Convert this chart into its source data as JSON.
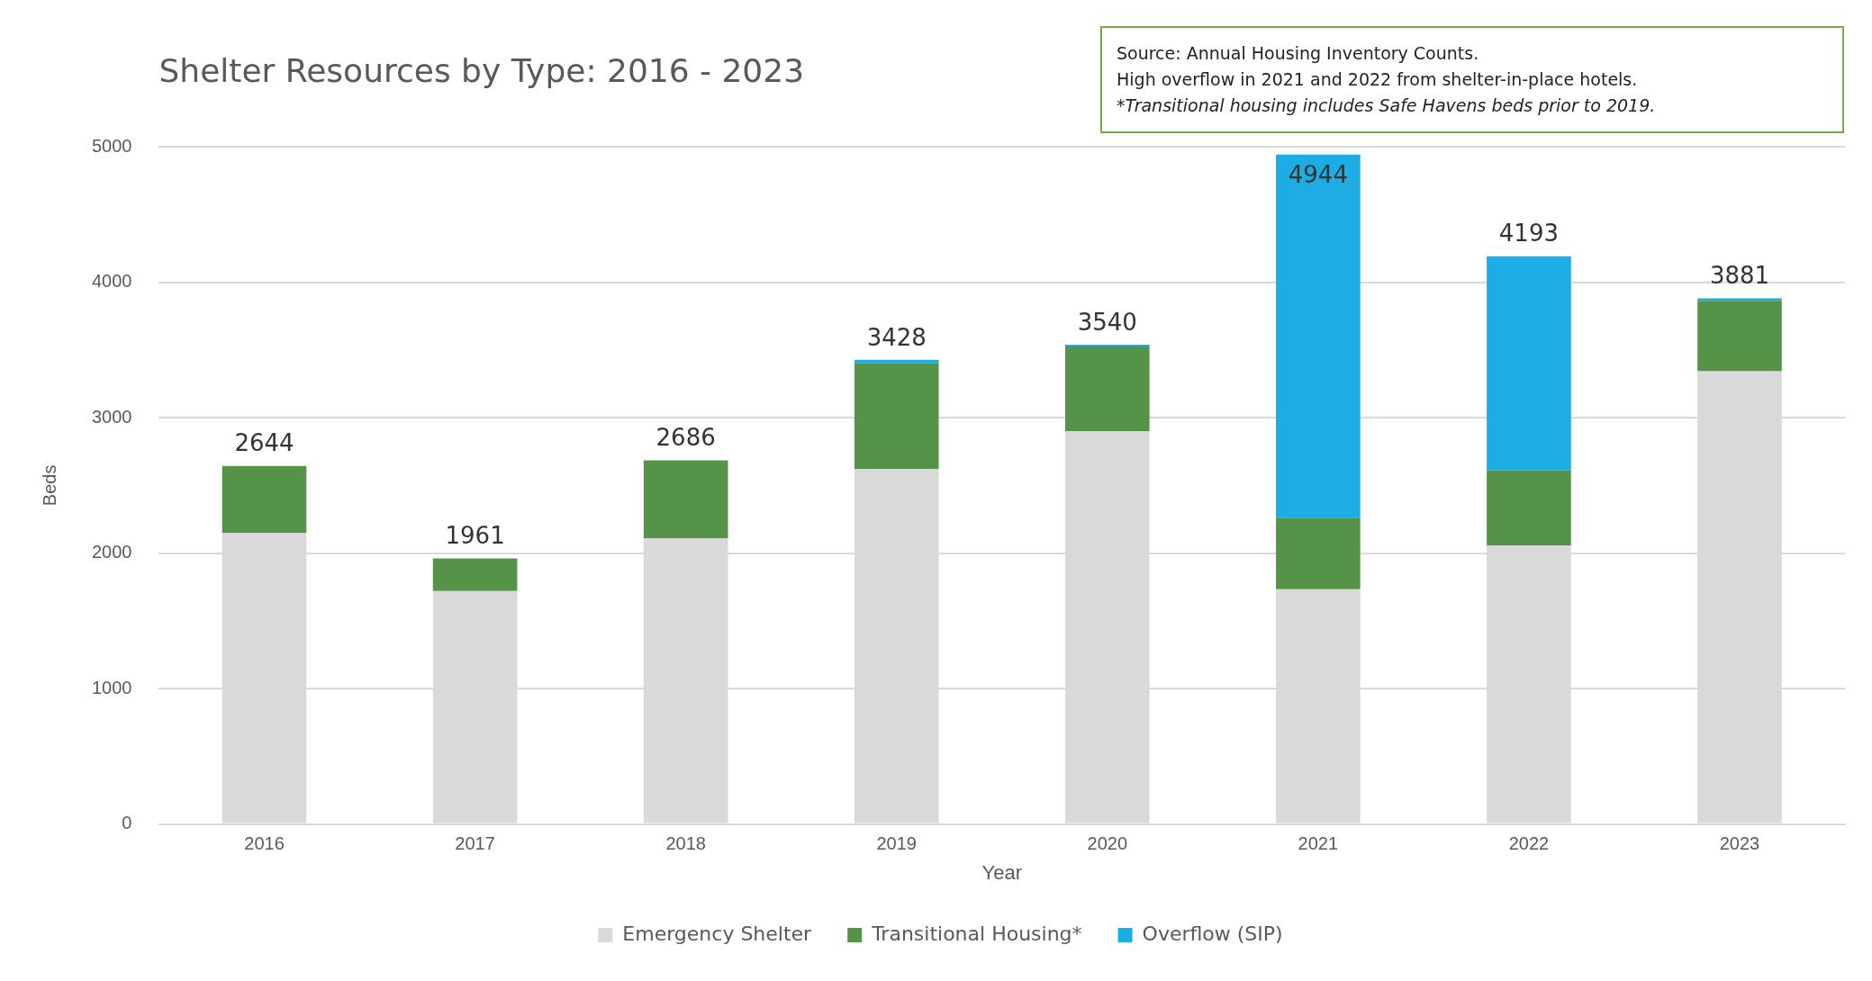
{
  "chart_data": {
    "type": "bar",
    "title": "Shelter Resources by Type: 2016 - 2023",
    "xlabel": "Year",
    "ylabel": "Beds",
    "annotations": [
      "Source: Annual Housing Inventory Counts.",
      "High overflow in 2021 and 2022 from shelter-in-place hotels.",
      "*Transitional housing includes Safe Havens beds prior to 2019."
    ],
    "categories": [
      "2016",
      "2017",
      "2018",
      "2019",
      "2020",
      "2021",
      "2022",
      "2023"
    ],
    "stacked": true,
    "series": [
      {
        "name": "Emergency Shelter",
        "color": "#d9d9d9",
        "values": [
          2150,
          1720,
          2110,
          2623,
          2900,
          1733,
          2056,
          3344
        ]
      },
      {
        "name": "Transitional Housing*",
        "color": "#559349",
        "values": [
          494,
          241,
          576,
          779,
          626,
          528,
          555,
          519
        ]
      },
      {
        "name": "Overflow (SIP)",
        "color": "#1cade4",
        "values": [
          0,
          0,
          0,
          26,
          14,
          2683,
          1582,
          18
        ]
      }
    ],
    "totals": [
      "2644",
      "1961",
      "2686",
      "3428",
      "3540",
      "4944",
      "4193",
      "3881"
    ],
    "ylim": [
      0,
      5000
    ],
    "yticks": [
      0,
      1000,
      2000,
      3000,
      4000,
      5000
    ],
    "grid": "y",
    "legend": "bottom"
  }
}
